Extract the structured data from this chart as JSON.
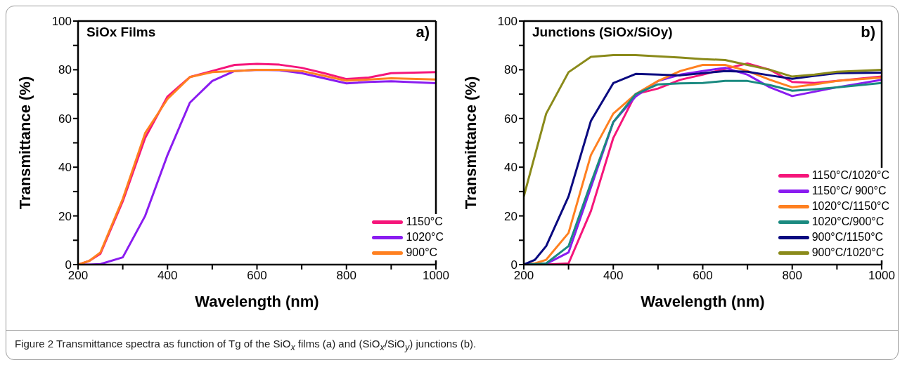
{
  "chart_data": [
    {
      "type": "line",
      "title": "SiOx Films",
      "xlabel": "Wavelength (nm)",
      "ylabel": "Transmittance (%)",
      "annotations": [
        "a)"
      ],
      "x": [
        200,
        225,
        250,
        300,
        350,
        400,
        450,
        500,
        550,
        600,
        650,
        700,
        750,
        800,
        850,
        900,
        1000
      ],
      "series": [
        {
          "name": "1150°C",
          "color": "#f5157a",
          "values": [
            0,
            1.5,
            4.5,
            26,
            52,
            69,
            77,
            79.5,
            82,
            82.4,
            82.1,
            80.8,
            78.6,
            76.2,
            76.8,
            78.6,
            79
          ]
        },
        {
          "name": "1020°C",
          "color": "#8a1cf0",
          "values": [
            0,
            0,
            0.2,
            3,
            20,
            45,
            66.5,
            75.4,
            79.5,
            80,
            79.8,
            78.6,
            76.5,
            74.4,
            75,
            75.3,
            74.5
          ]
        },
        {
          "name": "900°C",
          "color": "#ff8020",
          "values": [
            0,
            1.5,
            5,
            27,
            54,
            68,
            77,
            79,
            79.5,
            80,
            80,
            79.5,
            77.5,
            75.5,
            76,
            76.5,
            76
          ]
        }
      ],
      "xlim": [
        200,
        1000
      ],
      "xticks": [
        200,
        {
          "value": 300,
          "label": null
        },
        400,
        {
          "value": 500,
          "label": null
        },
        600,
        {
          "value": 700,
          "label": null
        },
        800,
        {
          "value": 900,
          "label": null
        },
        1000
      ],
      "ylim": [
        0,
        100
      ],
      "yticks": [
        0,
        {
          "value": 10,
          "label": null
        },
        20,
        {
          "value": 30,
          "label": null
        },
        40,
        {
          "value": 50,
          "label": null
        },
        60,
        {
          "value": 70,
          "label": null
        },
        80,
        {
          "value": 90,
          "label": null
        },
        100
      ],
      "grid": false,
      "legend": "bottom right",
      "marker": "none",
      "line_style": "solid"
    },
    {
      "type": "line",
      "title": "Junctions (SiOx/SiOy)",
      "xlabel": "Wavelength (nm)",
      "ylabel": "Transmittance (%)",
      "annotations": [
        "b)",
        "Figure 2 Transmittance spectra as function of Tg of the SiO$_{x}$ films (a) and (SiO$_{x}$/SiO$_{y}$) junctions (b)."
      ],
      "x": [
        200,
        225,
        250,
        300,
        350,
        400,
        450,
        500,
        550,
        600,
        650,
        700,
        750,
        800,
        850,
        900,
        1000
      ],
      "series": [
        {
          "name": "1150°C/1020°C",
          "color": "#f5157a",
          "values": [
            0,
            0,
            0,
            0.5,
            22,
            52,
            70,
            72.3,
            75.9,
            78,
            80.4,
            82.6,
            80,
            75,
            74.6,
            75.4,
            77.2
          ]
        },
        {
          "name": "1150°C/ 900°C",
          "color": "#8a1cf0",
          "values": [
            0,
            0,
            0.3,
            5,
            31.7,
            58.5,
            69,
            75.4,
            78,
            79.5,
            80.8,
            78,
            72.8,
            69.2,
            71,
            72.8,
            75.9
          ]
        },
        {
          "name": "1020°C/1150°C",
          "color": "#ff8020",
          "values": [
            0,
            0.5,
            2,
            13,
            45,
            62,
            70,
            75.4,
            79.5,
            82,
            82,
            79.5,
            75.9,
            72.8,
            74,
            75.4,
            76.8
          ]
        },
        {
          "name": "1020°C/900°C",
          "color": "#1a8a80",
          "values": [
            0,
            0.2,
            0.5,
            7.6,
            33.5,
            58.5,
            70,
            74,
            74.4,
            74.6,
            75.4,
            75.4,
            73.7,
            71.4,
            72,
            72.8,
            74.6
          ]
        },
        {
          "name": "900°C/1150°C",
          "color": "#0a0a80",
          "values": [
            0,
            2,
            7.6,
            28,
            59,
            74.5,
            78.3,
            78,
            77.7,
            78.6,
            79.5,
            79.2,
            77.7,
            76.3,
            77.5,
            78.6,
            78.8
          ]
        },
        {
          "name": "900°C/1020°C",
          "color": "#8a8a1a",
          "values": [
            28,
            45,
            62,
            79,
            85.3,
            86,
            86,
            85.5,
            85,
            84.4,
            84,
            82,
            80,
            77.2,
            78,
            79.2,
            80
          ]
        }
      ],
      "xlim": [
        200,
        1000
      ],
      "xticks": [
        200,
        {
          "value": 300,
          "label": null
        },
        400,
        {
          "value": 500,
          "label": null
        },
        600,
        {
          "value": 700,
          "label": null
        },
        800,
        {
          "value": 900,
          "label": null
        },
        1000
      ],
      "ylim": [
        0,
        100
      ],
      "yticks": [
        0,
        {
          "value": 10,
          "label": null
        },
        20,
        {
          "value": 30,
          "label": null
        },
        40,
        {
          "value": 50,
          "label": null
        },
        60,
        {
          "value": 70,
          "label": null
        },
        80,
        {
          "value": 90,
          "label": null
        },
        100
      ],
      "grid": false,
      "legend": "bottom right",
      "marker": "none",
      "line_style": "solid"
    }
  ]
}
